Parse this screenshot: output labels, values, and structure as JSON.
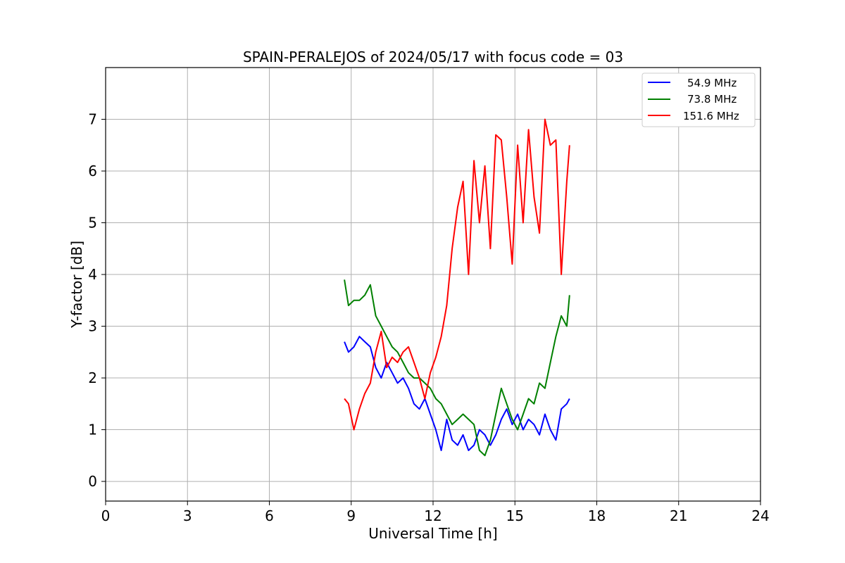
{
  "chart_data": {
    "type": "line",
    "title": "SPAIN-PERALEJOS of 2024/05/17 with focus code = 03",
    "xlabel": "Universal Time [h]",
    "ylabel": "Y-factor [dB]",
    "xlim": [
      0,
      24
    ],
    "ylim": [
      -0.38,
      8.0
    ],
    "x_ticks": [
      "0",
      "3",
      "6",
      "9",
      "12",
      "15",
      "18",
      "21",
      "24"
    ],
    "y_ticks": [
      "0",
      "1",
      "2",
      "3",
      "4",
      "5",
      "6",
      "7"
    ],
    "grid": true,
    "legend_position": "top-right",
    "series": [
      {
        "name": "54.9 MHz",
        "color": "#0000ff",
        "x": [
          8.75,
          8.9,
          9.1,
          9.3,
          9.5,
          9.7,
          9.9,
          10.1,
          10.3,
          10.5,
          10.7,
          10.9,
          11.1,
          11.3,
          11.5,
          11.7,
          11.9,
          12.1,
          12.3,
          12.5,
          12.7,
          12.9,
          13.1,
          13.3,
          13.5,
          13.7,
          13.9,
          14.1,
          14.3,
          14.5,
          14.7,
          14.9,
          15.1,
          15.3,
          15.5,
          15.7,
          15.9,
          16.1,
          16.3,
          16.5,
          16.7,
          16.9,
          17.0
        ],
        "y": [
          2.7,
          2.5,
          2.6,
          2.8,
          2.7,
          2.6,
          2.2,
          2.0,
          2.3,
          2.1,
          1.9,
          2.0,
          1.8,
          1.5,
          1.4,
          1.6,
          1.3,
          1.0,
          0.6,
          1.2,
          0.8,
          0.7,
          0.9,
          0.6,
          0.7,
          1.0,
          0.9,
          0.7,
          0.9,
          1.2,
          1.4,
          1.1,
          1.3,
          1.0,
          1.2,
          1.1,
          0.9,
          1.3,
          1.0,
          0.8,
          1.4,
          1.5,
          1.6
        ]
      },
      {
        "name": "73.8 MHz",
        "color": "#008000",
        "x": [
          8.75,
          8.9,
          9.1,
          9.3,
          9.5,
          9.7,
          9.9,
          10.1,
          10.3,
          10.5,
          10.7,
          10.9,
          11.1,
          11.3,
          11.5,
          11.7,
          11.9,
          12.1,
          12.3,
          12.5,
          12.7,
          12.9,
          13.1,
          13.3,
          13.5,
          13.7,
          13.9,
          14.1,
          14.3,
          14.5,
          14.7,
          14.9,
          15.1,
          15.3,
          15.5,
          15.7,
          15.9,
          16.1,
          16.3,
          16.5,
          16.7,
          16.9,
          17.0
        ],
        "y": [
          3.9,
          3.4,
          3.5,
          3.5,
          3.6,
          3.8,
          3.2,
          3.0,
          2.8,
          2.6,
          2.5,
          2.3,
          2.1,
          2.0,
          2.0,
          1.9,
          1.8,
          1.6,
          1.5,
          1.3,
          1.1,
          1.2,
          1.3,
          1.2,
          1.1,
          0.6,
          0.5,
          0.8,
          1.3,
          1.8,
          1.5,
          1.2,
          1.0,
          1.3,
          1.6,
          1.5,
          1.9,
          1.8,
          2.3,
          2.8,
          3.2,
          3.0,
          3.6
        ]
      },
      {
        "name": "151.6 MHz",
        "color": "#ff0000",
        "x": [
          8.75,
          8.9,
          9.1,
          9.3,
          9.5,
          9.7,
          9.9,
          10.1,
          10.3,
          10.5,
          10.7,
          10.9,
          11.1,
          11.3,
          11.5,
          11.7,
          11.9,
          12.1,
          12.3,
          12.5,
          12.7,
          12.9,
          13.1,
          13.3,
          13.5,
          13.7,
          13.9,
          14.1,
          14.3,
          14.5,
          14.7,
          14.9,
          15.1,
          15.3,
          15.5,
          15.7,
          15.9,
          16.1,
          16.3,
          16.5,
          16.7,
          16.9,
          17.0
        ],
        "y": [
          1.6,
          1.5,
          1.0,
          1.4,
          1.7,
          1.9,
          2.5,
          2.9,
          2.2,
          2.4,
          2.3,
          2.5,
          2.6,
          2.3,
          2.0,
          1.6,
          2.1,
          2.4,
          2.8,
          3.4,
          4.5,
          5.3,
          5.8,
          4.0,
          6.2,
          5.0,
          6.1,
          4.5,
          6.7,
          6.6,
          5.5,
          4.2,
          6.5,
          5.0,
          6.8,
          5.5,
          4.8,
          7.0,
          6.5,
          6.6,
          4.0,
          5.8,
          6.5
        ]
      }
    ]
  }
}
